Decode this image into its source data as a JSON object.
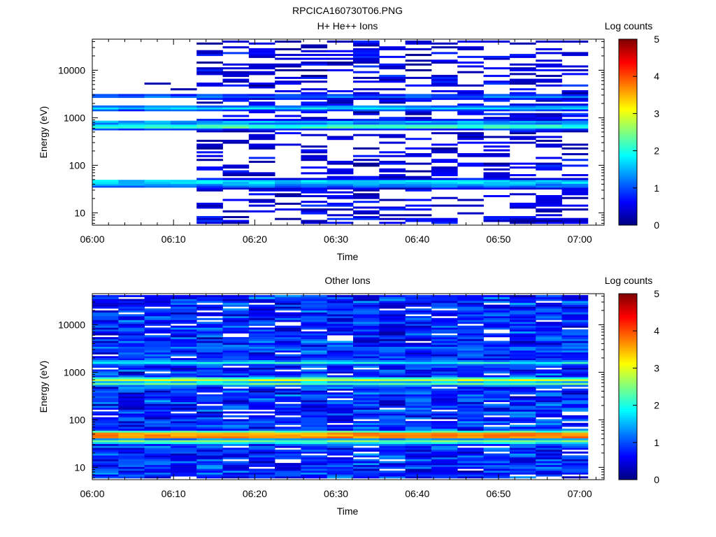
{
  "figure": {
    "title": "RPCICA160730T06.PNG"
  },
  "colorbar": {
    "label": "Log counts",
    "ticks": [
      "0",
      "1",
      "2",
      "3",
      "4",
      "5"
    ],
    "range": [
      0,
      5
    ],
    "colormap": "jet"
  },
  "chart_data": [
    {
      "type": "heatmap",
      "title": "H+ He++ Ions",
      "xlabel": "Time",
      "ylabel": "Energy (eV)",
      "y_scale": "log",
      "x_ticks": [
        "06:00",
        "06:10",
        "06:20",
        "06:30",
        "06:40",
        "06:50",
        "07:00"
      ],
      "y_ticks": [
        "10",
        "100",
        "1000",
        "10000"
      ],
      "x_range": [
        "06:00",
        "07:03"
      ],
      "y_range": [
        5.5,
        45000
      ],
      "z_range": [
        0,
        5
      ],
      "time_start": "06:00",
      "time_end": "07:01",
      "time_bins": 19,
      "active_from": "06:00",
      "dense_from": "06:10",
      "bands": [
        {
          "energy_eV": 45,
          "level": 1.9
        },
        {
          "energy_eV": 38,
          "level": 1.4
        },
        {
          "energy_eV": 650,
          "level": 2.4
        },
        {
          "energy_eV": 800,
          "level": 1.6
        },
        {
          "energy_eV": 1600,
          "level": 1.8
        },
        {
          "energy_eV": 2800,
          "level": 1.2
        }
      ],
      "background": {
        "level": 0.5,
        "fill": 0.42
      }
    },
    {
      "type": "heatmap",
      "title": "Other Ions",
      "xlabel": "Time",
      "ylabel": "Energy (eV)",
      "y_scale": "log",
      "x_ticks": [
        "06:00",
        "06:10",
        "06:20",
        "06:30",
        "06:40",
        "06:50",
        "07:00"
      ],
      "y_ticks": [
        "10",
        "100",
        "1000",
        "10000"
      ],
      "x_range": [
        "06:00",
        "07:03"
      ],
      "y_range": [
        5.5,
        45000
      ],
      "z_range": [
        0,
        5
      ],
      "time_start": "06:00",
      "time_end": "07:01",
      "time_bins": 19,
      "active_from": "06:00",
      "dense_from": "06:00",
      "bands": [
        {
          "energy_eV": 45,
          "level": 4.2
        },
        {
          "energy_eV": 52,
          "level": 3.6
        },
        {
          "energy_eV": 35,
          "level": 2.5
        },
        {
          "energy_eV": 700,
          "level": 3.0
        },
        {
          "energy_eV": 580,
          "level": 2.4
        },
        {
          "energy_eV": 1600,
          "level": 2.0
        },
        {
          "energy_eV": 3200,
          "level": 1.3
        }
      ],
      "background": {
        "level": 0.9,
        "fill": 0.93
      }
    }
  ]
}
